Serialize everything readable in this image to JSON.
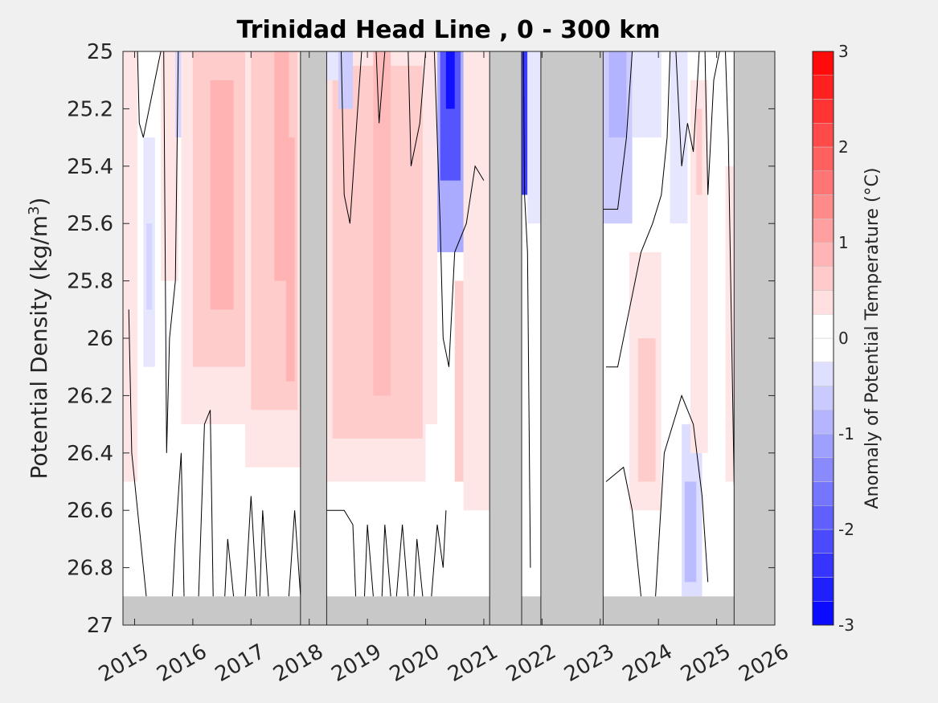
{
  "chart_data": {
    "type": "heatmap",
    "title": "Trinidad Head Line , 0 - 300 km",
    "xlabel": "",
    "ylabel_main": "Potential Density (kg/m",
    "ylabel_sup": "3",
    "ylabel_end": ")",
    "xlim": [
      2014.8,
      2026.0
    ],
    "ylim": [
      25,
      27
    ],
    "x_ticks": [
      2015,
      2016,
      2017,
      2018,
      2019,
      2020,
      2021,
      2022,
      2023,
      2024,
      2025,
      2026
    ],
    "x_tick_labels": [
      "2015",
      "2016",
      "2017",
      "2018",
      "2019",
      "2020",
      "2021",
      "2022",
      "2023",
      "2024",
      "2025",
      "2026"
    ],
    "y_ticks": [
      25,
      25.2,
      25.4,
      25.6,
      25.8,
      26,
      26.2,
      26.4,
      26.6,
      26.8,
      27
    ],
    "y_tick_labels": [
      "25",
      "25.2",
      "25.4",
      "25.6",
      "25.8",
      "26",
      "26.2",
      "26.4",
      "26.6",
      "26.8",
      "27"
    ],
    "colorbar": {
      "label": "Anomaly of Potential Temperature (°C)",
      "min": -3,
      "max": 3,
      "step": 0.25,
      "ticks": [
        -3,
        -2,
        -1,
        0,
        1,
        2,
        3
      ],
      "tick_labels": [
        "-3",
        "-2",
        "-1",
        "0",
        "1",
        "2",
        "3"
      ],
      "cold_color": "#0000ff",
      "warm_color": "#ff0000",
      "neutral_color": "#ffffff"
    },
    "no_data_color": "#c8c8c8",
    "missing_periods": [
      {
        "x0": 2017.85,
        "x1": 2018.3
      },
      {
        "x0": 2021.1,
        "x1": 2021.65
      },
      {
        "x0": 2021.98,
        "x1": 2023.05
      },
      {
        "x0": 2025.3,
        "x1": 2026.0
      }
    ],
    "missing_bottom_layer": {
      "y0": 26.9,
      "y1": 27
    },
    "anomaly_patches": [
      {
        "x0": 2014.8,
        "x1": 2015.05,
        "y0": 25.0,
        "y1": 26.5,
        "value": 0.3
      },
      {
        "x0": 2015.15,
        "x1": 2015.35,
        "y0": 25.3,
        "y1": 26.1,
        "value": -0.3
      },
      {
        "x0": 2015.2,
        "x1": 2015.3,
        "y0": 25.6,
        "y1": 25.9,
        "value": -0.5
      },
      {
        "x0": 2015.45,
        "x1": 2015.75,
        "y0": 25.0,
        "y1": 25.8,
        "value": 0.3
      },
      {
        "x0": 2015.7,
        "x1": 2015.8,
        "y0": 25.0,
        "y1": 25.3,
        "value": -0.5
      },
      {
        "x0": 2015.8,
        "x1": 2016.95,
        "y0": 25.0,
        "y1": 26.3,
        "value": 0.3
      },
      {
        "x0": 2016.0,
        "x1": 2016.9,
        "y0": 25.0,
        "y1": 26.1,
        "value": 0.6
      },
      {
        "x0": 2016.3,
        "x1": 2016.7,
        "y0": 25.1,
        "y1": 25.9,
        "value": 0.9
      },
      {
        "x0": 2016.9,
        "x1": 2017.85,
        "y0": 25.0,
        "y1": 26.45,
        "value": 0.3
      },
      {
        "x0": 2017.0,
        "x1": 2017.8,
        "y0": 25.0,
        "y1": 26.25,
        "value": 0.6
      },
      {
        "x0": 2017.4,
        "x1": 2017.65,
        "y0": 25.0,
        "y1": 25.8,
        "value": 0.9
      },
      {
        "x0": 2017.6,
        "x1": 2017.75,
        "y0": 25.3,
        "y1": 26.15,
        "value": 0.9
      },
      {
        "x0": 2018.3,
        "x1": 2020.0,
        "y0": 25.0,
        "y1": 26.5,
        "value": 0.3
      },
      {
        "x0": 2018.4,
        "x1": 2019.95,
        "y0": 25.05,
        "y1": 26.35,
        "value": 0.6
      },
      {
        "x0": 2019.1,
        "x1": 2019.4,
        "y0": 25.0,
        "y1": 26.2,
        "value": 0.8
      },
      {
        "x0": 2019.5,
        "x1": 2019.75,
        "y0": 25.1,
        "y1": 25.9,
        "value": 0.6
      },
      {
        "x0": 2018.3,
        "x1": 2018.55,
        "y0": 25.0,
        "y1": 25.1,
        "value": -0.3
      },
      {
        "x0": 2018.5,
        "x1": 2018.75,
        "y0": 25.0,
        "y1": 25.2,
        "value": -0.6
      },
      {
        "x0": 2020.0,
        "x1": 2020.2,
        "y0": 25.0,
        "y1": 26.3,
        "value": 0.3
      },
      {
        "x0": 2020.2,
        "x1": 2020.7,
        "y0": 25.0,
        "y1": 25.7,
        "value": -1.0
      },
      {
        "x0": 2020.25,
        "x1": 2020.6,
        "y0": 25.0,
        "y1": 25.45,
        "value": -2.0
      },
      {
        "x0": 2020.35,
        "x1": 2020.5,
        "y0": 25.0,
        "y1": 25.2,
        "value": -2.8
      },
      {
        "x0": 2020.5,
        "x1": 2020.65,
        "y0": 25.8,
        "y1": 26.5,
        "value": 0.6
      },
      {
        "x0": 2020.65,
        "x1": 2021.1,
        "y0": 25.0,
        "y1": 26.6,
        "value": 0.3
      },
      {
        "x0": 2021.65,
        "x1": 2021.75,
        "y0": 25.0,
        "y1": 25.5,
        "value": -2.3
      },
      {
        "x0": 2021.75,
        "x1": 2021.98,
        "y0": 25.0,
        "y1": 25.6,
        "value": -0.3
      },
      {
        "x0": 2023.05,
        "x1": 2023.55,
        "y0": 25.0,
        "y1": 25.6,
        "value": -0.6
      },
      {
        "x0": 2023.15,
        "x1": 2023.45,
        "y0": 25.0,
        "y1": 25.3,
        "value": -0.9
      },
      {
        "x0": 2023.55,
        "x1": 2024.05,
        "y0": 25.0,
        "y1": 25.3,
        "value": -0.3
      },
      {
        "x0": 2023.5,
        "x1": 2024.05,
        "y0": 25.7,
        "y1": 26.6,
        "value": 0.3
      },
      {
        "x0": 2023.65,
        "x1": 2023.95,
        "y0": 26.0,
        "y1": 26.5,
        "value": 0.6
      },
      {
        "x0": 2024.2,
        "x1": 2024.5,
        "y0": 25.0,
        "y1": 25.6,
        "value": -0.3
      },
      {
        "x0": 2024.4,
        "x1": 2024.75,
        "y0": 26.3,
        "y1": 26.9,
        "value": -0.4
      },
      {
        "x0": 2024.45,
        "x1": 2024.65,
        "y0": 26.5,
        "y1": 26.85,
        "value": -0.8
      },
      {
        "x0": 2024.55,
        "x1": 2024.85,
        "y0": 25.1,
        "y1": 26.4,
        "value": 0.3
      },
      {
        "x0": 2024.65,
        "x1": 2024.75,
        "y0": 25.2,
        "y1": 25.5,
        "value": 0.6
      },
      {
        "x0": 2025.15,
        "x1": 2025.3,
        "y0": 25.4,
        "y1": 26.5,
        "value": 0.3
      }
    ],
    "contour_zero": [
      [
        [
          2015.05,
          25.0
        ],
        [
          2015.08,
          25.25
        ],
        [
          2015.15,
          25.3
        ],
        [
          2015.3,
          25.15
        ],
        [
          2015.4,
          25.05
        ],
        [
          2015.45,
          25.0
        ]
      ],
      [
        [
          2014.9,
          25.9
        ],
        [
          2014.95,
          26.4
        ],
        [
          2015.2,
          26.9
        ]
      ],
      [
        [
          2015.5,
          25.0
        ],
        [
          2015.55,
          26.4
        ],
        [
          2015.6,
          26.0
        ],
        [
          2015.7,
          25.8
        ],
        [
          2015.75,
          25.0
        ]
      ],
      [
        [
          2015.65,
          26.9
        ],
        [
          2015.7,
          26.7
        ],
        [
          2015.8,
          26.4
        ],
        [
          2015.85,
          26.9
        ]
      ],
      [
        [
          2016.1,
          26.9
        ],
        [
          2016.2,
          26.3
        ],
        [
          2016.3,
          26.25
        ],
        [
          2016.35,
          26.9
        ]
      ],
      [
        [
          2016.55,
          26.9
        ],
        [
          2016.6,
          26.7
        ],
        [
          2016.7,
          26.9
        ]
      ],
      [
        [
          2016.9,
          26.9
        ],
        [
          2017.0,
          26.55
        ],
        [
          2017.1,
          26.9
        ]
      ],
      [
        [
          2017.15,
          26.9
        ],
        [
          2017.2,
          26.6
        ],
        [
          2017.3,
          26.9
        ]
      ],
      [
        [
          2017.65,
          26.9
        ],
        [
          2017.75,
          26.6
        ],
        [
          2017.85,
          26.9
        ]
      ],
      [
        [
          2018.3,
          26.6
        ],
        [
          2018.6,
          26.6
        ],
        [
          2018.75,
          26.65
        ],
        [
          2018.8,
          26.9
        ]
      ],
      [
        [
          2018.95,
          26.9
        ],
        [
          2019.0,
          26.65
        ],
        [
          2019.1,
          26.9
        ]
      ],
      [
        [
          2019.25,
          26.9
        ],
        [
          2019.3,
          26.65
        ],
        [
          2019.4,
          26.9
        ]
      ],
      [
        [
          2019.5,
          26.9
        ],
        [
          2019.6,
          26.65
        ],
        [
          2019.7,
          26.9
        ]
      ],
      [
        [
          2019.8,
          26.9
        ],
        [
          2019.85,
          26.7
        ],
        [
          2019.95,
          26.9
        ]
      ],
      [
        [
          2020.1,
          26.9
        ],
        [
          2020.2,
          26.65
        ],
        [
          2020.3,
          26.8
        ],
        [
          2020.35,
          26.6
        ]
      ],
      [
        [
          2018.55,
          25.0
        ],
        [
          2018.6,
          25.5
        ],
        [
          2018.7,
          25.6
        ],
        [
          2018.8,
          25.3
        ],
        [
          2018.9,
          25.0
        ]
      ],
      [
        [
          2019.15,
          25.0
        ],
        [
          2019.2,
          25.25
        ],
        [
          2019.3,
          25.0
        ]
      ],
      [
        [
          2019.7,
          25.0
        ],
        [
          2019.75,
          25.4
        ],
        [
          2019.9,
          25.25
        ],
        [
          2020.0,
          25.0
        ]
      ],
      [
        [
          2020.15,
          25.0
        ],
        [
          2020.25,
          25.6
        ],
        [
          2020.3,
          26.0
        ],
        [
          2020.4,
          26.1
        ],
        [
          2020.5,
          25.7
        ],
        [
          2020.7,
          25.6
        ],
        [
          2020.85,
          25.4
        ],
        [
          2021.0,
          25.45
        ]
      ],
      [
        [
          2021.68,
          25.0
        ],
        [
          2021.7,
          25.5
        ],
        [
          2021.75,
          25.7
        ],
        [
          2021.8,
          26.8
        ]
      ],
      [
        [
          2023.05,
          25.55
        ],
        [
          2023.3,
          25.55
        ],
        [
          2023.45,
          25.3
        ],
        [
          2023.55,
          25.0
        ]
      ],
      [
        [
          2023.1,
          26.1
        ],
        [
          2023.3,
          26.1
        ],
        [
          2023.5,
          25.9
        ],
        [
          2023.7,
          25.7
        ],
        [
          2023.9,
          25.6
        ],
        [
          2024.05,
          25.5
        ],
        [
          2024.15,
          25.3
        ],
        [
          2024.2,
          25.0
        ]
      ],
      [
        [
          2023.1,
          26.5
        ],
        [
          2023.4,
          26.45
        ],
        [
          2023.55,
          26.6
        ],
        [
          2023.7,
          26.9
        ]
      ],
      [
        [
          2023.95,
          26.9
        ],
        [
          2024.1,
          26.4
        ],
        [
          2024.4,
          26.2
        ],
        [
          2024.6,
          26.3
        ],
        [
          2024.75,
          26.55
        ],
        [
          2024.85,
          26.85
        ]
      ],
      [
        [
          2024.3,
          25.0
        ],
        [
          2024.4,
          25.4
        ],
        [
          2024.5,
          25.25
        ],
        [
          2024.6,
          25.35
        ],
        [
          2024.7,
          25.0
        ]
      ],
      [
        [
          2024.8,
          25.0
        ],
        [
          2024.85,
          25.5
        ],
        [
          2024.95,
          25.1
        ],
        [
          2025.05,
          25.0
        ]
      ],
      [
        [
          2025.15,
          25.0
        ],
        [
          2025.2,
          25.3
        ],
        [
          2025.3,
          26.5
        ],
        [
          2025.35,
          26.8
        ]
      ]
    ]
  }
}
